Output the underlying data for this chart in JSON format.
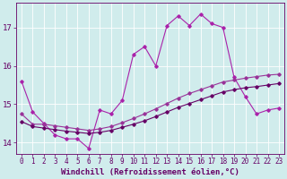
{
  "title": "",
  "xlabel": "Windchill (Refroidissement éolien,°C)",
  "bg_color": "#d0ecec",
  "grid_color": "#ffffff",
  "xlim": [
    -0.5,
    23.5
  ],
  "ylim": [
    13.7,
    17.65
  ],
  "xticks": [
    0,
    1,
    2,
    3,
    4,
    5,
    6,
    7,
    8,
    9,
    10,
    11,
    12,
    13,
    14,
    15,
    16,
    17,
    18,
    19,
    20,
    21,
    22,
    23
  ],
  "yticks": [
    14,
    15,
    16,
    17
  ],
  "line1_x": [
    0,
    1,
    2,
    3,
    4,
    5,
    6,
    7,
    8,
    9,
    10,
    11,
    12,
    13,
    14,
    15,
    16,
    17,
    18,
    19,
    20,
    21,
    22,
    23
  ],
  "line1_y": [
    15.6,
    14.8,
    14.5,
    14.2,
    14.1,
    14.1,
    13.85,
    14.85,
    14.75,
    15.1,
    16.3,
    16.5,
    16.0,
    17.05,
    17.3,
    17.05,
    17.35,
    17.1,
    17.0,
    15.7,
    15.2,
    14.75,
    14.85,
    14.9
  ],
  "line2_x": [
    0,
    1,
    2,
    3,
    4,
    5,
    6,
    7,
    8,
    9,
    10,
    11,
    12,
    13,
    14,
    15,
    16,
    17,
    18,
    19,
    20,
    21,
    22,
    23
  ],
  "line2_y": [
    14.75,
    14.48,
    14.48,
    14.44,
    14.4,
    14.36,
    14.32,
    14.36,
    14.42,
    14.52,
    14.63,
    14.75,
    14.88,
    15.02,
    15.16,
    15.28,
    15.38,
    15.48,
    15.58,
    15.63,
    15.68,
    15.72,
    15.76,
    15.78
  ],
  "line3_x": [
    0,
    1,
    2,
    3,
    4,
    5,
    6,
    7,
    8,
    9,
    10,
    11,
    12,
    13,
    14,
    15,
    16,
    17,
    18,
    19,
    20,
    21,
    22,
    23
  ],
  "line3_y": [
    14.55,
    14.42,
    14.38,
    14.34,
    14.3,
    14.27,
    14.24,
    14.27,
    14.32,
    14.4,
    14.48,
    14.57,
    14.68,
    14.8,
    14.92,
    15.02,
    15.12,
    15.22,
    15.32,
    15.38,
    15.43,
    15.46,
    15.5,
    15.54
  ],
  "line_color1": "#aa22aa",
  "line_color2": "#993399",
  "line_color3": "#660066",
  "marker": "D",
  "marker_size": 1.8,
  "line_width": 0.8,
  "tick_fontsize": 5.5,
  "label_fontsize": 6.5
}
